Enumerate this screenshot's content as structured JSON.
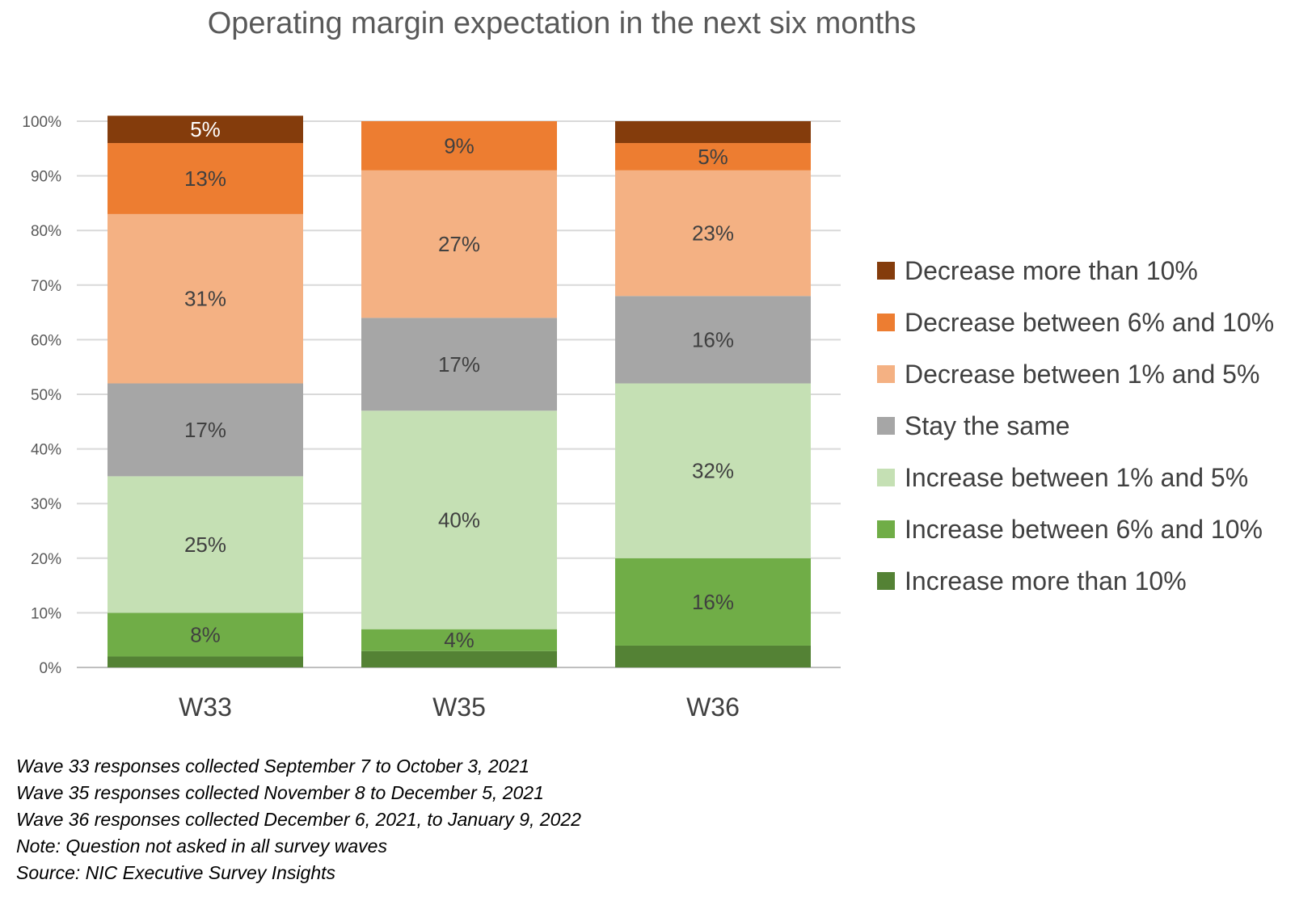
{
  "chart_data": {
    "type": "bar",
    "stacked": true,
    "title": "Operating margin expectation in the next six months",
    "categories": [
      "W33",
      "W35",
      "W36"
    ],
    "ylim": [
      0,
      100
    ],
    "yticks": [
      "0%",
      "10%",
      "20%",
      "30%",
      "40%",
      "50%",
      "60%",
      "70%",
      "80%",
      "90%",
      "100%"
    ],
    "grid": true,
    "legend_position": "right",
    "series": [
      {
        "name": "Increase more than 10%",
        "color": "#548235",
        "values": [
          2,
          3,
          4
        ],
        "labels": [
          "",
          "",
          ""
        ]
      },
      {
        "name": "Increase between 6% and 10%",
        "color": "#70AD47",
        "values": [
          8,
          4,
          16
        ],
        "labels": [
          "8%",
          "4%",
          "16%"
        ]
      },
      {
        "name": "Increase between 1% and 5%",
        "color": "#C5E0B4",
        "values": [
          25,
          40,
          32
        ],
        "labels": [
          "25%",
          "40%",
          "32%"
        ]
      },
      {
        "name": "Stay the same",
        "color": "#A6A6A6",
        "values": [
          17,
          17,
          16
        ],
        "labels": [
          "17%",
          "17%",
          "16%"
        ]
      },
      {
        "name": "Decrease between 1% and 5%",
        "color": "#F4B183",
        "values": [
          31,
          27,
          23
        ],
        "labels": [
          "31%",
          "27%",
          "23%"
        ]
      },
      {
        "name": "Decrease between 6% and 10%",
        "color": "#ED7D31",
        "values": [
          13,
          9,
          5
        ],
        "labels": [
          "13%",
          "9%",
          "5%"
        ]
      },
      {
        "name": "Decrease more than 10%",
        "color": "#843C0C",
        "values": [
          5,
          0,
          4
        ],
        "labels": [
          "5%",
          "",
          ""
        ]
      }
    ]
  },
  "notes": [
    "Wave 33 responses collected September 7 to October 3, 2021",
    "Wave 35 responses collected November 8 to December 5, 2021",
    "Wave 36 responses collected December 6, 2021, to January 9, 2022",
    "Note: Question not asked in all survey waves",
    "Source: NIC Executive Survey Insights"
  ]
}
